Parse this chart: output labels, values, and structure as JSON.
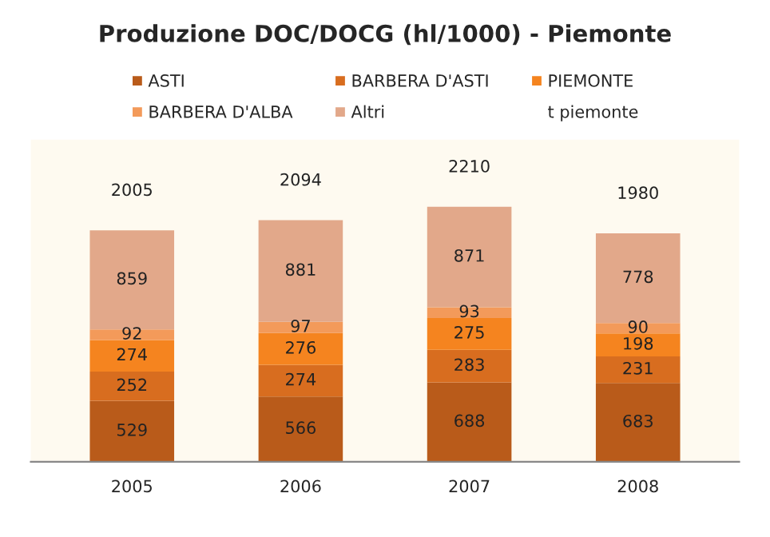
{
  "chart_data": {
    "type": "bar",
    "title": "Produzione DOC/DOCG (hl/1000) - Piemonte",
    "categories": [
      "2005",
      "2006",
      "2007",
      "2008"
    ],
    "stacked": true,
    "data_labels": true,
    "legend": "top",
    "grid": false,
    "series": [
      {
        "name": "ASTI",
        "color": "#b95b1a",
        "values": [
          529,
          566,
          688,
          683
        ]
      },
      {
        "name": "BARBERA D'ASTI",
        "color": "#d86d1f",
        "values": [
          252,
          274,
          283,
          231
        ]
      },
      {
        "name": "PIEMONTE",
        "color": "#f5841f",
        "values": [
          274,
          276,
          275,
          198
        ]
      },
      {
        "name": "BARBERA D'ALBA",
        "color": "#f39a5a",
        "values": [
          92,
          97,
          93,
          90
        ]
      },
      {
        "name": "Altri",
        "color": "#e2a88a",
        "values": [
          859,
          881,
          871,
          778
        ]
      },
      {
        "name": "t piemonte",
        "type": "line",
        "values": [
          null,
          null,
          null,
          null
        ]
      }
    ],
    "totals": [
      "2005",
      "2094",
      "2210",
      "1980"
    ]
  }
}
